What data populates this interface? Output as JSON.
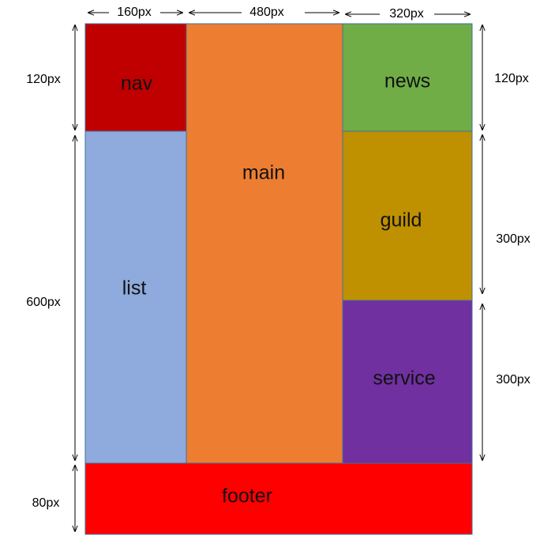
{
  "blocks": [
    {
      "label": "nav"
    },
    {
      "label": "main"
    },
    {
      "label": "news"
    },
    {
      "label": "list"
    },
    {
      "label": "guild"
    },
    {
      "label": "service"
    },
    {
      "label": "footer"
    }
  ],
  "dimensions": {
    "top": [
      "160px",
      "480px",
      "320px"
    ],
    "left": [
      "120px",
      "600px",
      "80px"
    ],
    "right": [
      "120px",
      "300px",
      "300px"
    ]
  }
}
